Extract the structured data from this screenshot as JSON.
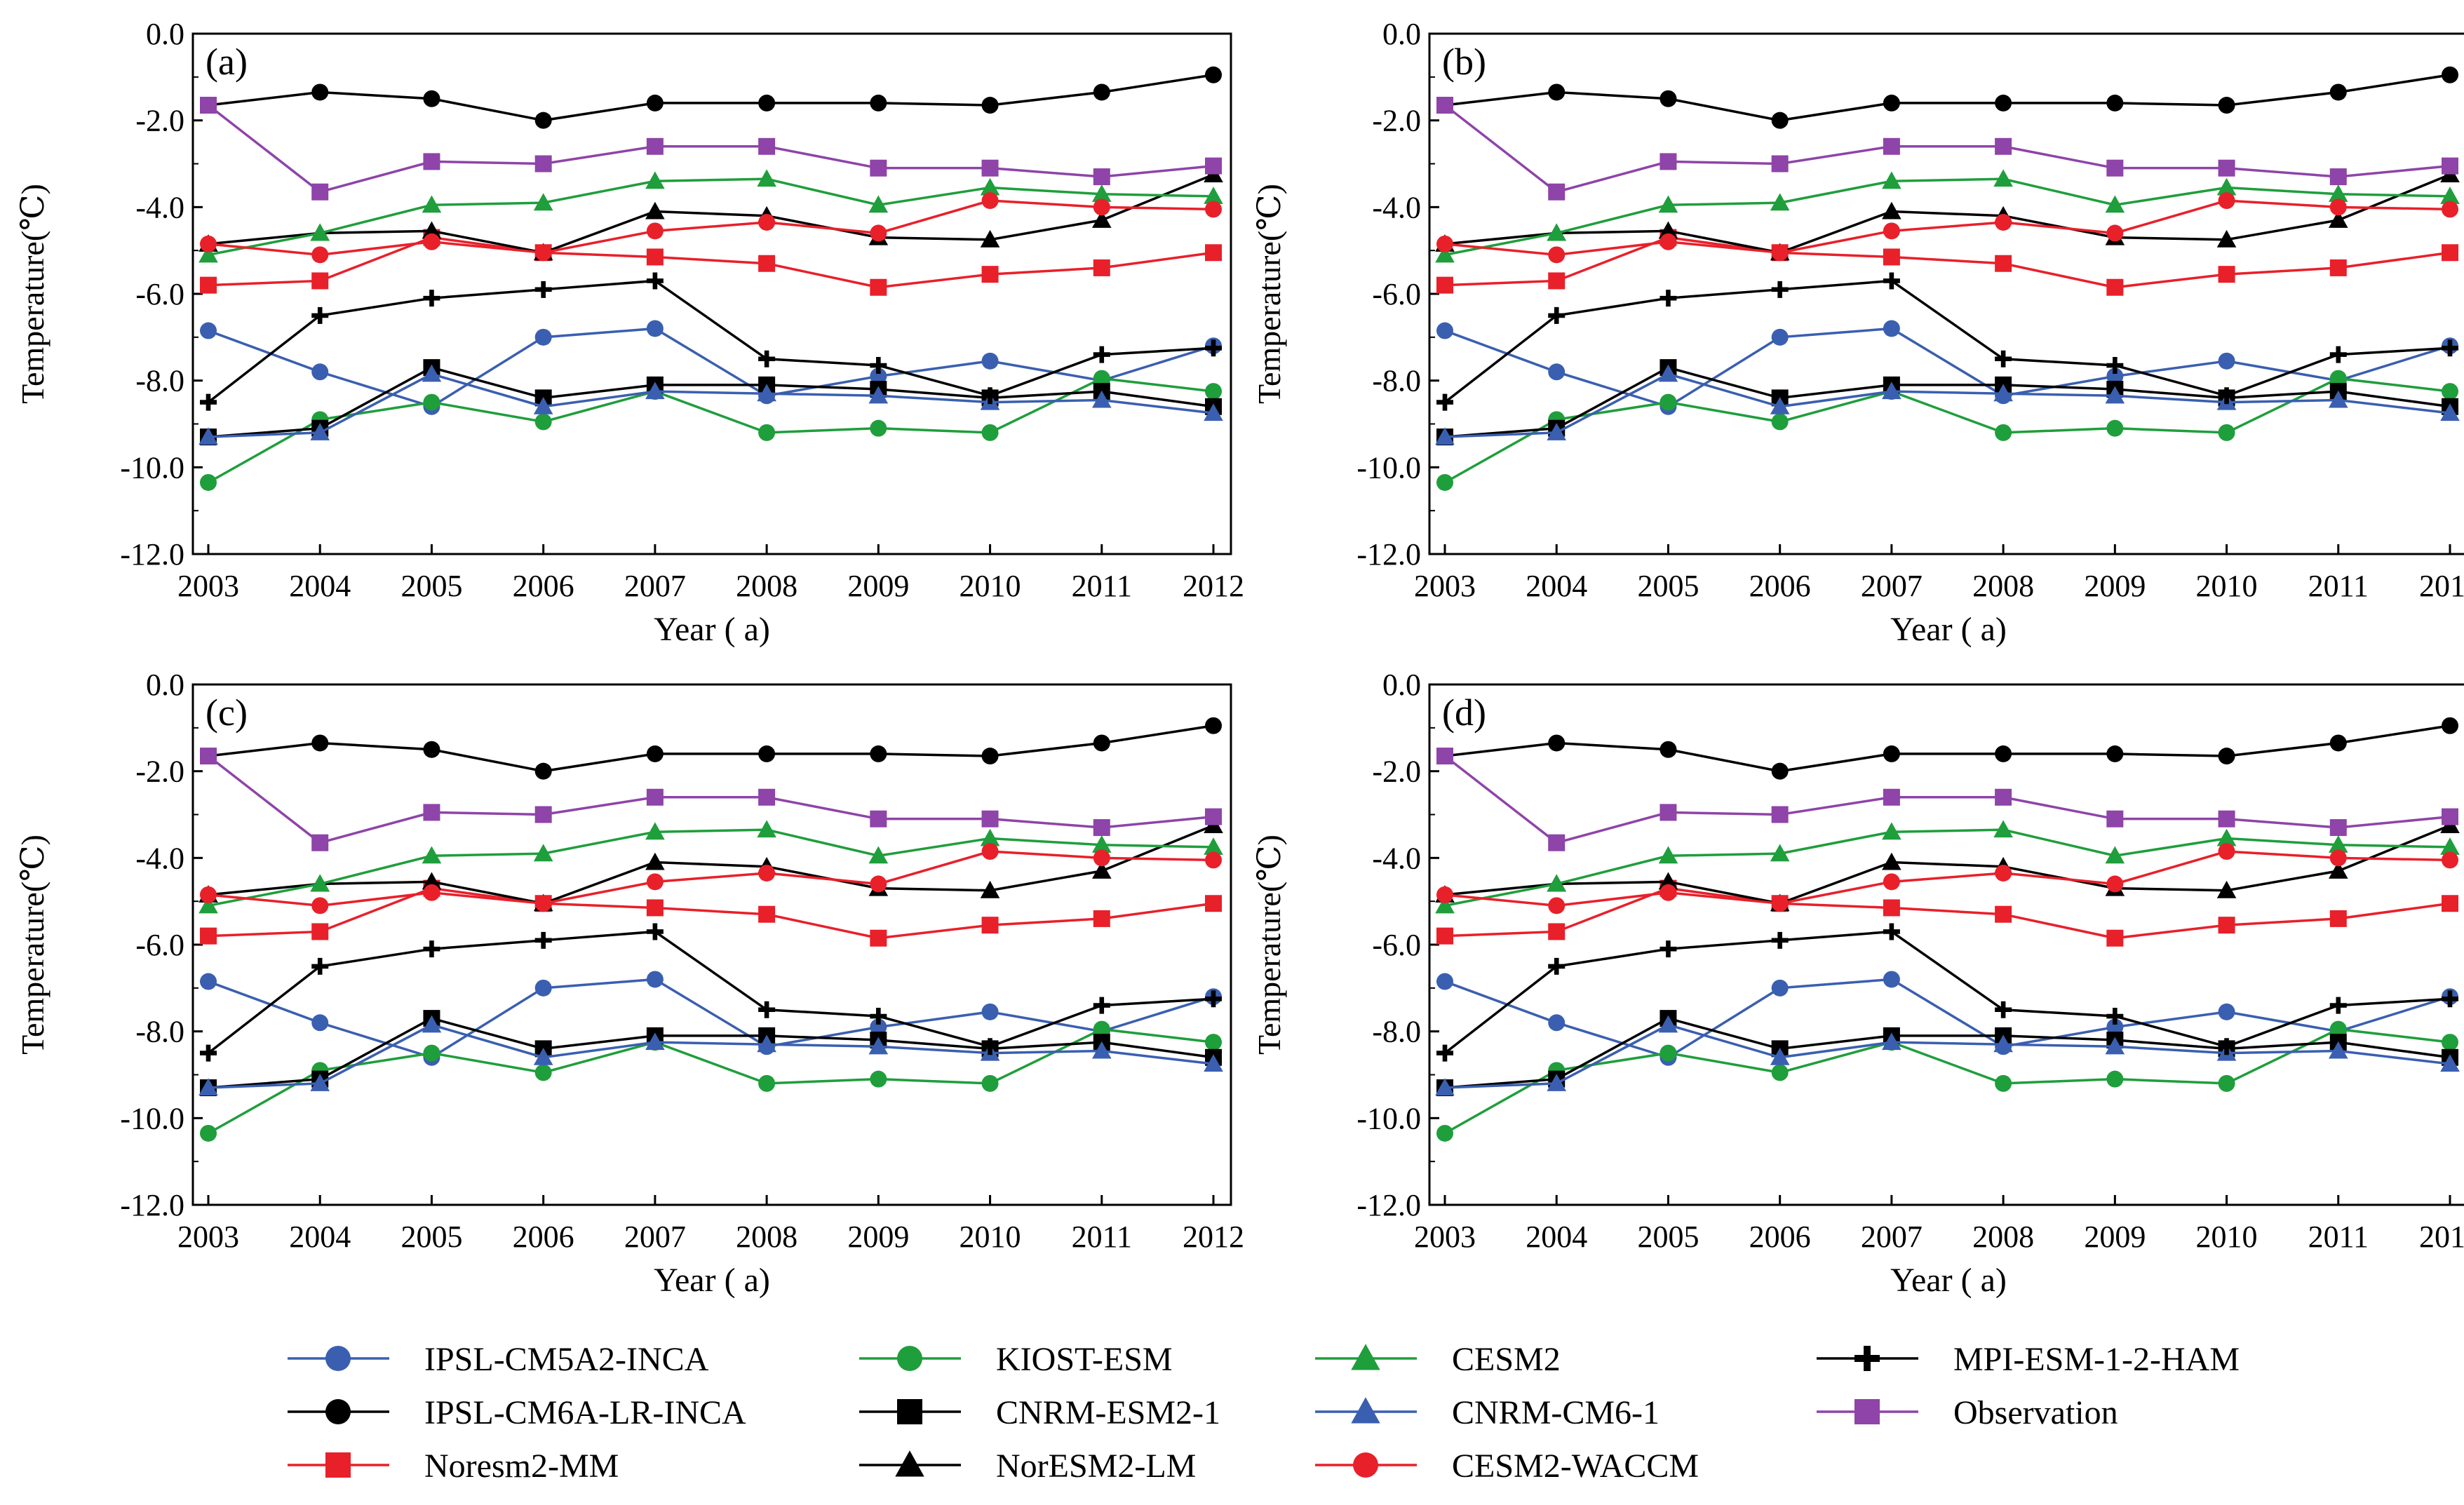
{
  "chart_data": {
    "type": "line",
    "shared": {
      "x": [
        2003,
        2004,
        2005,
        2006,
        2007,
        2008,
        2009,
        2010,
        2011,
        2012
      ],
      "x_tick_labels": [
        "2003",
        "2004",
        "2005",
        "2006",
        "2007",
        "2008",
        "2009",
        "2010",
        "2011",
        "2012"
      ],
      "y_tick_labels": [
        "0.0",
        "-2.0",
        "-4.0",
        "-6.0",
        "-8.0",
        "-10.0",
        "-12.0"
      ],
      "y_ticks": [
        0,
        -2,
        -4,
        -6,
        -8,
        -10,
        -12
      ],
      "ylim": [
        -12,
        0
      ],
      "xlabel": "Year ( a)",
      "ylabel": "Temperature(℃)"
    },
    "panels": [
      "(a)",
      "(b)",
      "(c)",
      "(d)"
    ],
    "series": [
      {
        "name": "IPSL-CM5A2-INCA",
        "color": "#3a5fb0",
        "marker": "circle",
        "values": [
          -6.85,
          -7.8,
          -8.6,
          -7.0,
          -6.8,
          -8.35,
          -7.9,
          -7.55,
          -8.0,
          -7.2
        ]
      },
      {
        "name": "IPSL-CM6A-LR-INCA",
        "color": "#000000",
        "marker": "circle",
        "values": [
          -1.65,
          -1.35,
          -1.5,
          -2.0,
          -1.6,
          -1.6,
          -1.6,
          -1.65,
          -1.35,
          -0.95
        ]
      },
      {
        "name": "Noresm2-MM",
        "color": "#e8202a",
        "marker": "square",
        "values": [
          -5.8,
          -5.7,
          -4.7,
          -5.05,
          -5.15,
          -5.3,
          -5.85,
          -5.55,
          -5.4,
          -5.05
        ]
      },
      {
        "name": "KIOST-ESM",
        "color": "#1f9e3c",
        "marker": "circle",
        "values": [
          -10.35,
          -8.9,
          -8.5,
          -8.95,
          -8.25,
          -9.2,
          -9.1,
          -9.2,
          -7.95,
          -8.25
        ]
      },
      {
        "name": "CNRM-ESM2-1",
        "color": "#000000",
        "marker": "square",
        "values": [
          -9.3,
          -9.1,
          -7.7,
          -8.4,
          -8.1,
          -8.1,
          -8.2,
          -8.4,
          -8.25,
          -8.6
        ]
      },
      {
        "name": "NorESM2-LM",
        "color": "#000000",
        "marker": "triangle",
        "values": [
          -4.85,
          -4.6,
          -4.55,
          -5.05,
          -4.1,
          -4.2,
          -4.7,
          -4.75,
          -4.3,
          -3.25
        ]
      },
      {
        "name": "CESM2",
        "color": "#1f9e3c",
        "marker": "triangle",
        "values": [
          -5.1,
          -4.6,
          -3.95,
          -3.9,
          -3.4,
          -3.35,
          -3.95,
          -3.55,
          -3.7,
          -3.75
        ]
      },
      {
        "name": "CNRM-CM6-1",
        "color": "#3a5fb0",
        "marker": "triangle",
        "values": [
          -9.3,
          -9.2,
          -7.85,
          -8.6,
          -8.25,
          -8.3,
          -8.35,
          -8.5,
          -8.45,
          -8.75
        ]
      },
      {
        "name": "CESM2-WACCM",
        "color": "#e8202a",
        "marker": "circle",
        "values": [
          -4.85,
          -5.1,
          -4.8,
          -5.05,
          -4.55,
          -4.35,
          -4.6,
          -3.85,
          -4.0,
          -4.05
        ]
      },
      {
        "name": "MPI-ESM-1-2-HAM",
        "color": "#000000",
        "marker": "plus",
        "values": [
          -8.5,
          -6.5,
          -6.1,
          -5.9,
          -5.7,
          -7.5,
          -7.65,
          -8.35,
          -7.4,
          -7.25
        ]
      },
      {
        "name": "Observation",
        "color": "#8e44a8",
        "marker": "square",
        "values": [
          -1.65,
          -3.65,
          -2.95,
          -3.0,
          -2.6,
          -2.6,
          -3.1,
          -3.1,
          -3.3,
          -3.05
        ]
      }
    ],
    "legend_order": [
      0,
      3,
      6,
      9,
      1,
      4,
      7,
      10,
      2,
      5,
      8
    ],
    "legend_placement": "bottom"
  }
}
